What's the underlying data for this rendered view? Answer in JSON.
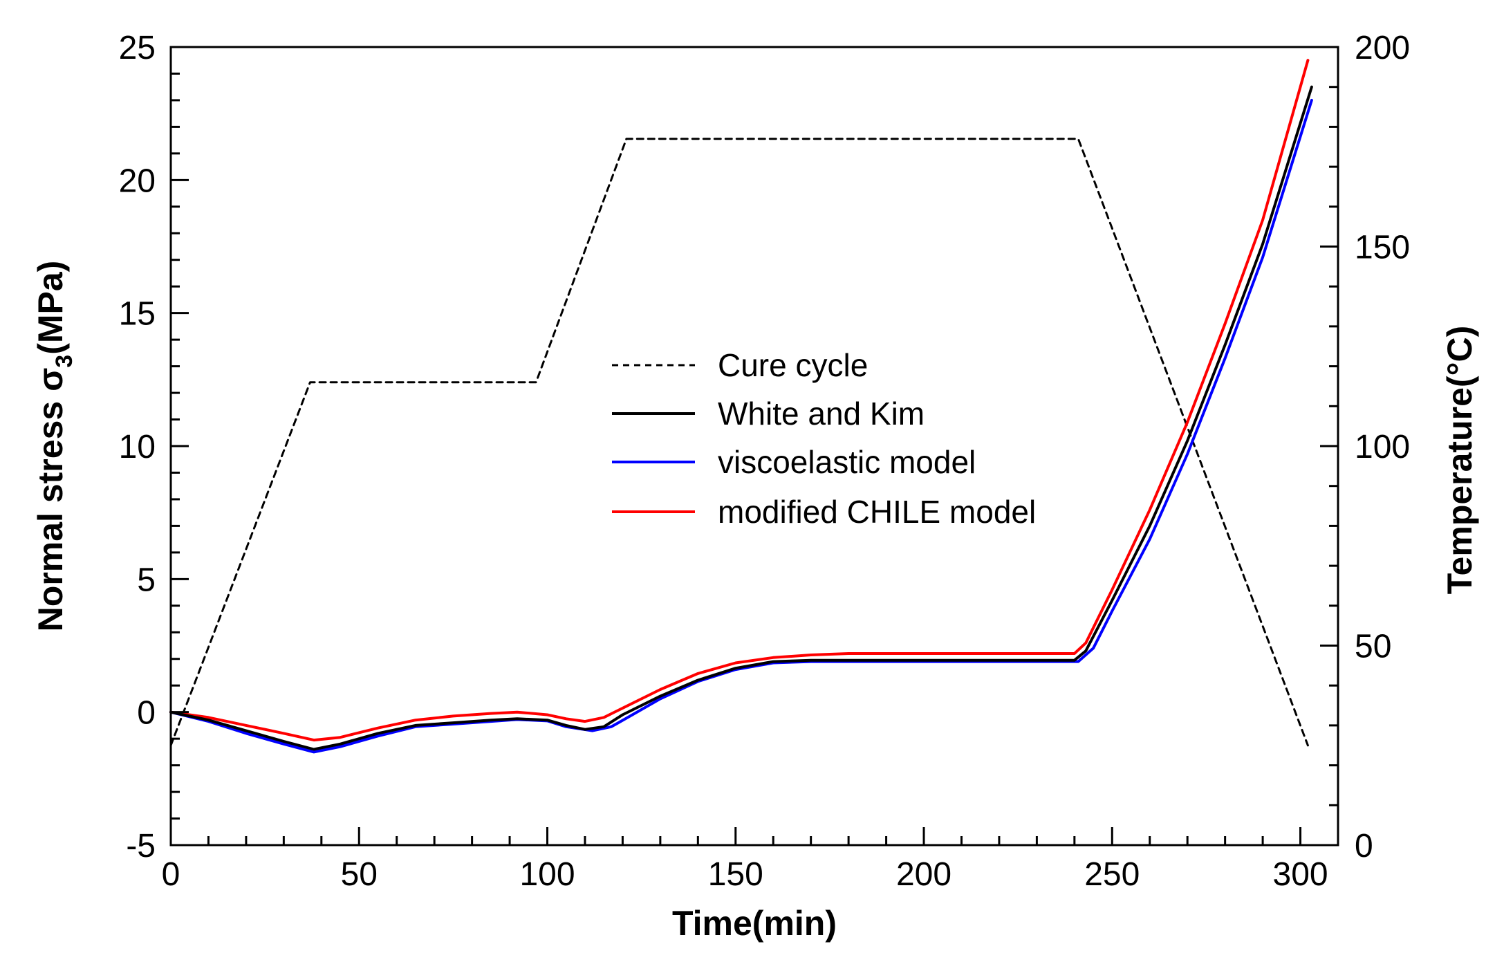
{
  "chart_data": {
    "type": "line",
    "title": "",
    "xlabel": "Time(min)",
    "ylabel": "Normal stress σ3(MPa)",
    "ylabel_parts": {
      "main": "Normal stress σ",
      "sub": "3",
      "unit": "(MPa)"
    },
    "y2label": "Temperature(°C)",
    "xlim": [
      0,
      310
    ],
    "ylim": [
      -5,
      25
    ],
    "y2lim": [
      0,
      200
    ],
    "xticks": [
      0,
      50,
      100,
      150,
      200,
      250,
      300
    ],
    "xtick_labels": [
      "0",
      "50",
      "100",
      "150",
      "200",
      "250",
      "300"
    ],
    "yticks": [
      -5,
      0,
      5,
      10,
      15,
      20,
      25
    ],
    "ytick_labels": [
      "-5",
      "0",
      "5",
      "10",
      "15",
      "20",
      "25"
    ],
    "y2ticks": [
      0,
      50,
      100,
      150,
      200
    ],
    "y2tick_labels": [
      "0",
      "50",
      "100",
      "150",
      "200"
    ],
    "grid": false,
    "legend_position": "center",
    "series": [
      {
        "name": "Cure cycle",
        "axis": "right",
        "color": "#000000",
        "dash": true,
        "x": [
          0,
          37,
          97,
          121,
          241,
          302
        ],
        "y": [
          25,
          116,
          116,
          177,
          177,
          25
        ]
      },
      {
        "name": "White and Kim",
        "axis": "left",
        "color": "#000000",
        "dash": false,
        "x": [
          0,
          10,
          20,
          30,
          38,
          45,
          55,
          65,
          75,
          85,
          92,
          100,
          105,
          110,
          115,
          120,
          130,
          140,
          150,
          160,
          170,
          180,
          200,
          220,
          240,
          243,
          250,
          260,
          270,
          280,
          290,
          303
        ],
        "y": [
          0,
          -0.3,
          -0.7,
          -1.1,
          -1.4,
          -1.2,
          -0.8,
          -0.5,
          -0.4,
          -0.3,
          -0.25,
          -0.3,
          -0.5,
          -0.65,
          -0.55,
          -0.1,
          0.6,
          1.2,
          1.65,
          1.9,
          1.95,
          1.95,
          1.95,
          1.95,
          1.95,
          2.3,
          4.2,
          7.0,
          10.2,
          13.8,
          17.6,
          23.5
        ]
      },
      {
        "name": "viscoelastic model",
        "axis": "left",
        "color": "#0000ff",
        "dash": false,
        "x": [
          0,
          10,
          20,
          30,
          38,
          45,
          55,
          65,
          75,
          85,
          92,
          100,
          105,
          112,
          117,
          122,
          130,
          140,
          150,
          160,
          170,
          180,
          200,
          220,
          241,
          245,
          250,
          260,
          270,
          280,
          290,
          303
        ],
        "y": [
          0,
          -0.35,
          -0.8,
          -1.2,
          -1.5,
          -1.3,
          -0.9,
          -0.55,
          -0.45,
          -0.35,
          -0.28,
          -0.33,
          -0.55,
          -0.7,
          -0.55,
          -0.15,
          0.5,
          1.15,
          1.6,
          1.85,
          1.9,
          1.9,
          1.9,
          1.9,
          1.9,
          2.4,
          3.8,
          6.5,
          9.7,
          13.3,
          17.1,
          23.0
        ]
      },
      {
        "name": "modified CHILE model",
        "axis": "left",
        "color": "#ff0000",
        "dash": false,
        "x": [
          0,
          10,
          20,
          30,
          38,
          45,
          55,
          65,
          75,
          85,
          92,
          100,
          105,
          110,
          115,
          120,
          130,
          140,
          150,
          160,
          170,
          180,
          200,
          220,
          240,
          243,
          250,
          260,
          270,
          280,
          290,
          302
        ],
        "y": [
          0,
          -0.2,
          -0.5,
          -0.8,
          -1.05,
          -0.95,
          -0.6,
          -0.3,
          -0.15,
          -0.05,
          0.0,
          -0.1,
          -0.25,
          -0.35,
          -0.2,
          0.15,
          0.85,
          1.45,
          1.85,
          2.05,
          2.15,
          2.2,
          2.2,
          2.2,
          2.2,
          2.6,
          4.6,
          7.6,
          10.9,
          14.6,
          18.5,
          24.5
        ]
      }
    ]
  }
}
